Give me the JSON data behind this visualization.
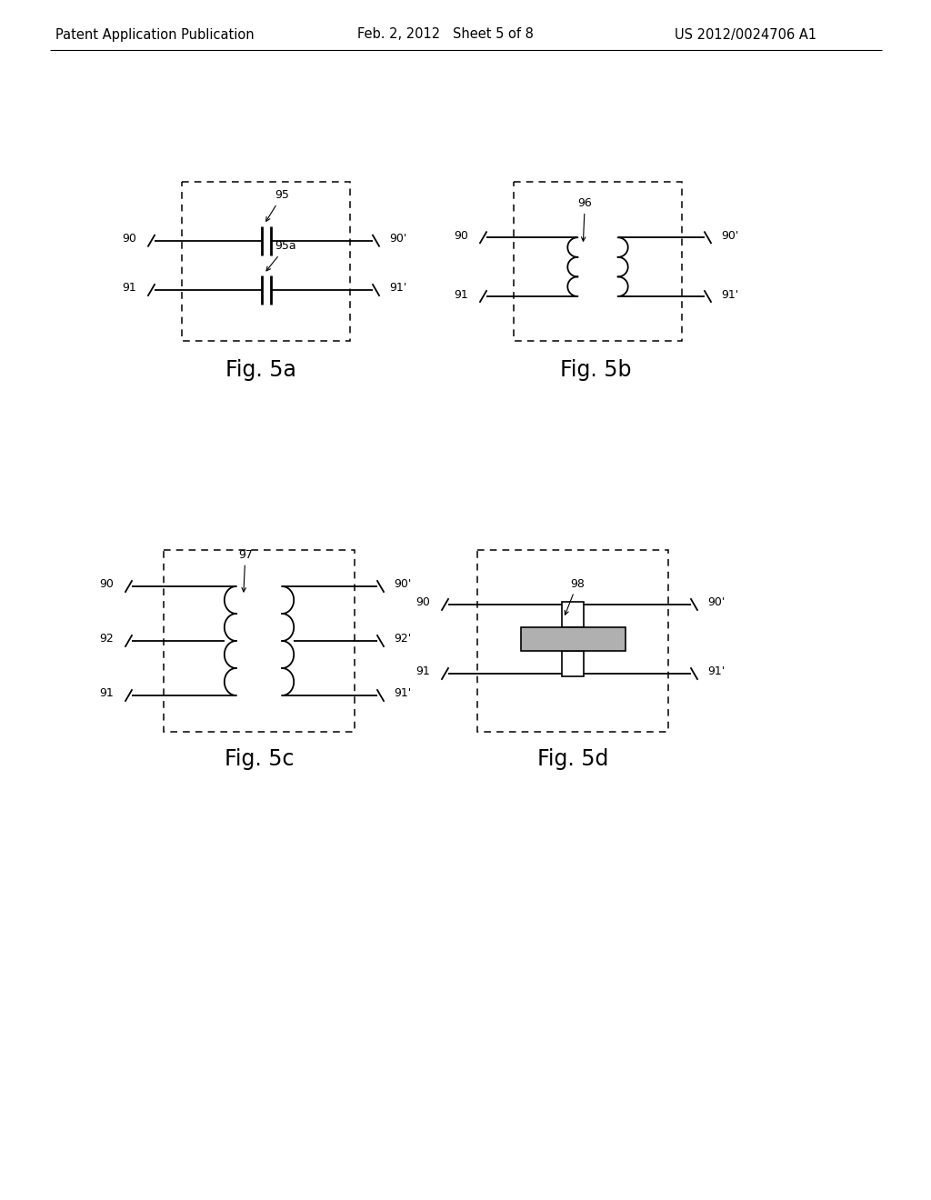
{
  "background_color": "#ffffff",
  "header_left": "Patent Application Publication",
  "header_center": "Feb. 2, 2012   Sheet 5 of 8",
  "header_right": "US 2012/0024706 A1",
  "fig5a_label": "Fig. 5a",
  "fig5b_label": "Fig. 5b",
  "fig5c_label": "Fig. 5c",
  "fig5d_label": "Fig. 5d",
  "line_color": "#000000"
}
